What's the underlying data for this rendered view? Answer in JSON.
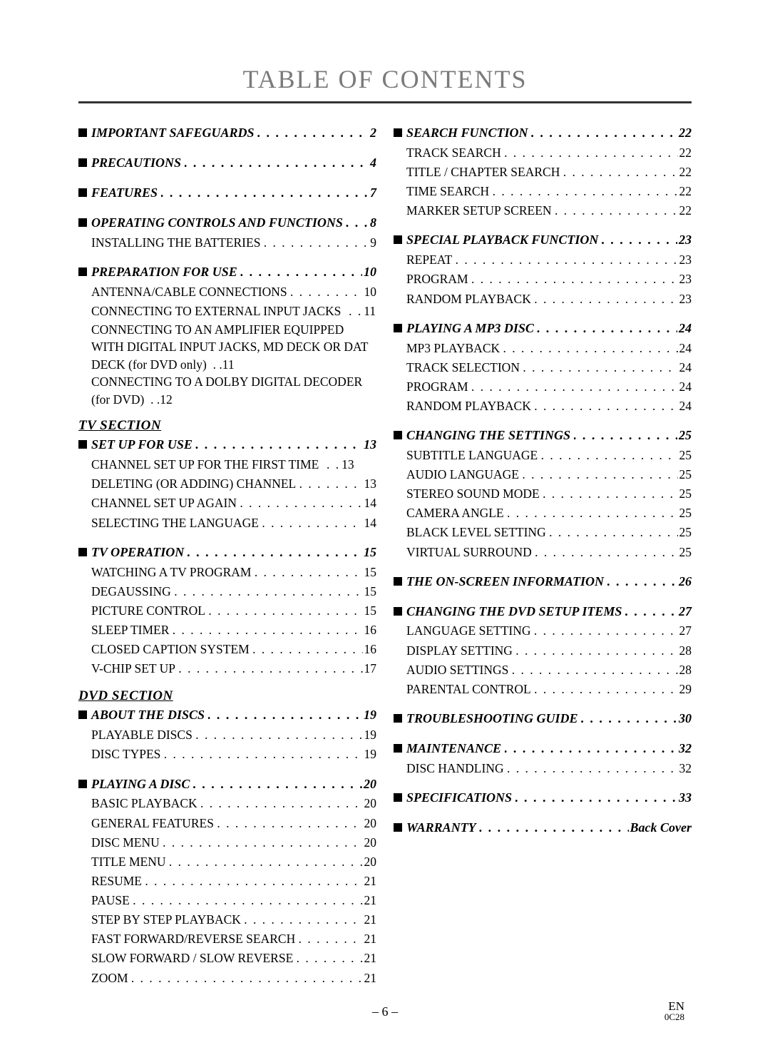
{
  "title": "TABLE OF CONTENTS",
  "section_labels": {
    "tv": "TV SECTION",
    "dvd": "DVD SECTION"
  },
  "footer": {
    "page": "– 6 –",
    "lang": "EN",
    "code": "0C28"
  },
  "left": [
    {
      "type": "heading",
      "title": "IMPORTANT SAFEGUARDS",
      "page": "2"
    },
    {
      "type": "heading",
      "title": "PRECAUTIONS",
      "page": "4"
    },
    {
      "type": "heading",
      "title": "FEATURES",
      "page": "7"
    },
    {
      "type": "heading",
      "title": "OPERATING CONTROLS AND FUNCTIONS",
      "page": "8",
      "subs": [
        {
          "title": "INSTALLING THE BATTERIES",
          "page": "9"
        }
      ]
    },
    {
      "type": "heading",
      "title": "PREPARATION FOR USE",
      "page": "10",
      "subs": [
        {
          "title": "ANTENNA/CABLE CONNECTIONS",
          "page": "10"
        },
        {
          "title": "CONNECTING TO EXTERNAL INPUT JACKS",
          "page": "11",
          "tight": true
        },
        {
          "title": "CONNECTING TO AN AMPLIFIER EQUIPPED WITH DIGITAL INPUT JACKS, MD DECK OR DAT DECK (for DVD only)",
          "page": "11",
          "wrap": true
        },
        {
          "title": "CONNECTING TO A DOLBY DIGITAL DECODER (for DVD)",
          "page": "12",
          "wrap": true
        }
      ]
    },
    {
      "type": "label",
      "ref": "tv"
    },
    {
      "type": "heading",
      "title": "SET UP FOR USE",
      "page": "13",
      "subs": [
        {
          "title": "CHANNEL SET UP FOR THE FIRST TIME",
          "page": "13",
          "tight": true
        },
        {
          "title": "DELETING (OR ADDING) CHANNEL",
          "page": "13"
        },
        {
          "title": "CHANNEL SET UP AGAIN",
          "page": "14"
        },
        {
          "title": "SELECTING THE LANGUAGE",
          "page": "14"
        }
      ]
    },
    {
      "type": "heading",
      "title": "TV OPERATION",
      "page": "15",
      "subs": [
        {
          "title": "WATCHING A TV PROGRAM",
          "page": "15"
        },
        {
          "title": "DEGAUSSING",
          "page": "15"
        },
        {
          "title": "PICTURE CONTROL",
          "page": "15"
        },
        {
          "title": "SLEEP TIMER",
          "page": "16"
        },
        {
          "title": "CLOSED CAPTION SYSTEM",
          "page": "16"
        },
        {
          "title": "V-CHIP SET UP",
          "page": "17"
        }
      ]
    },
    {
      "type": "label",
      "ref": "dvd"
    },
    {
      "type": "heading",
      "title": "ABOUT THE DISCS",
      "page": "19",
      "subs": [
        {
          "title": "PLAYABLE DISCS",
          "page": "19"
        },
        {
          "title": "DISC TYPES",
          "page": "19"
        }
      ]
    },
    {
      "type": "heading",
      "title": "PLAYING A DISC",
      "page": "20",
      "subs": [
        {
          "title": "BASIC PLAYBACK",
          "page": "20"
        },
        {
          "title": "GENERAL FEATURES",
          "page": "20"
        },
        {
          "title": "DISC MENU",
          "page": "20"
        },
        {
          "title": "TITLE MENU",
          "page": "20"
        },
        {
          "title": "RESUME",
          "page": "21"
        },
        {
          "title": "PAUSE",
          "page": "21"
        },
        {
          "title": "STEP BY STEP PLAYBACK",
          "page": "21"
        },
        {
          "title": "FAST FORWARD/REVERSE SEARCH",
          "page": "21"
        },
        {
          "title": "SLOW FORWARD / SLOW REVERSE",
          "page": "21"
        },
        {
          "title": "ZOOM",
          "page": "21"
        }
      ]
    }
  ],
  "right": [
    {
      "type": "heading",
      "title": "SEARCH FUNCTION",
      "page": "22",
      "subs": [
        {
          "title": "TRACK SEARCH",
          "page": "22"
        },
        {
          "title": "TITLE / CHAPTER SEARCH",
          "page": "22"
        },
        {
          "title": "TIME SEARCH",
          "page": "22"
        },
        {
          "title": "MARKER SETUP SCREEN",
          "page": "22"
        }
      ]
    },
    {
      "type": "heading",
      "title": "SPECIAL PLAYBACK FUNCTION",
      "page": "23",
      "subs": [
        {
          "title": "REPEAT",
          "page": "23"
        },
        {
          "title": "PROGRAM",
          "page": "23"
        },
        {
          "title": "RANDOM PLAYBACK",
          "page": "23"
        }
      ]
    },
    {
      "type": "heading",
      "title": "PLAYING A MP3 DISC",
      "page": "24",
      "subs": [
        {
          "title": "MP3 PLAYBACK",
          "page": "24"
        },
        {
          "title": "TRACK SELECTION",
          "page": "24"
        },
        {
          "title": "PROGRAM",
          "page": "24"
        },
        {
          "title": "RANDOM PLAYBACK",
          "page": "24"
        }
      ]
    },
    {
      "type": "heading",
      "title": "CHANGING THE SETTINGS",
      "page": "25",
      "subs": [
        {
          "title": "SUBTITLE LANGUAGE",
          "page": "25"
        },
        {
          "title": "AUDIO LANGUAGE",
          "page": "25"
        },
        {
          "title": "STEREO SOUND MODE",
          "page": "25"
        },
        {
          "title": "CAMERA ANGLE",
          "page": "25"
        },
        {
          "title": "BLACK LEVEL SETTING",
          "page": "25"
        },
        {
          "title": "VIRTUAL SURROUND",
          "page": "25"
        }
      ]
    },
    {
      "type": "heading",
      "title": "THE ON-SCREEN INFORMATION",
      "page": "26"
    },
    {
      "type": "heading",
      "title": "CHANGING THE DVD SETUP ITEMS",
      "page": "27",
      "subs": [
        {
          "title": "LANGUAGE SETTING",
          "page": "27"
        },
        {
          "title": "DISPLAY SETTING",
          "page": "28"
        },
        {
          "title": "AUDIO SETTINGS",
          "page": "28"
        },
        {
          "title": "PARENTAL CONTROL",
          "page": "29"
        }
      ]
    },
    {
      "type": "heading",
      "title": "TROUBLESHOOTING GUIDE",
      "page": "30"
    },
    {
      "type": "heading",
      "title": "MAINTENANCE",
      "page": "32",
      "subs": [
        {
          "title": "DISC HANDLING",
          "page": "32"
        }
      ]
    },
    {
      "type": "heading",
      "title": "SPECIFICATIONS",
      "page": "33"
    },
    {
      "type": "heading",
      "title": "WARRANTY",
      "page": "Back Cover"
    }
  ]
}
